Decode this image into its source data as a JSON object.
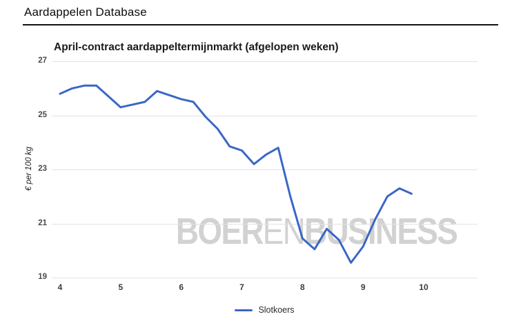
{
  "header": {
    "title": "Aardappelen Database"
  },
  "chart": {
    "title": "April-contract aardappeltermijnmarkt (afgelopen weken)",
    "y_axis_title": "€ per 100 kg",
    "watermark": {
      "part1": "BOER",
      "part2": "EN",
      "part3": "BUSINESS"
    },
    "legend_label": "Slotkoers",
    "colors": {
      "line": "#3a66c6",
      "grid": "#e2e2e2",
      "watermark": "#d2d2d2"
    }
  },
  "chart_data": {
    "type": "line",
    "title": "April-contract aardappeltermijnmarkt (afgelopen weken)",
    "xlabel": "",
    "ylabel": "€ per 100 kg",
    "x": [
      4.0,
      4.2,
      4.4,
      4.6,
      4.8,
      5.0,
      5.2,
      5.4,
      5.6,
      5.8,
      6.0,
      6.2,
      6.4,
      6.6,
      6.8,
      7.0,
      7.2,
      7.4,
      7.6,
      7.8,
      8.0,
      8.2,
      8.4,
      8.6,
      8.8,
      9.0,
      9.2,
      9.4,
      9.6,
      9.8
    ],
    "series": [
      {
        "name": "Slotkoers",
        "values": [
          25.8,
          26.0,
          26.1,
          26.1,
          25.7,
          25.3,
          25.4,
          25.5,
          25.9,
          25.75,
          25.6,
          25.5,
          24.95,
          24.5,
          23.85,
          23.7,
          23.2,
          23.55,
          23.8,
          22.0,
          20.45,
          20.05,
          20.8,
          20.4,
          19.55,
          20.15,
          21.15,
          22.0,
          22.3,
          22.1
        ]
      }
    ],
    "x_ticks": [
      4,
      5,
      6,
      7,
      8,
      9,
      10
    ],
    "y_ticks": [
      27,
      25,
      23,
      21,
      19
    ],
    "xlim": [
      3.86,
      10.89
    ],
    "ylim": [
      19,
      27
    ],
    "grid": "horizontal",
    "legend_position": "bottom"
  }
}
